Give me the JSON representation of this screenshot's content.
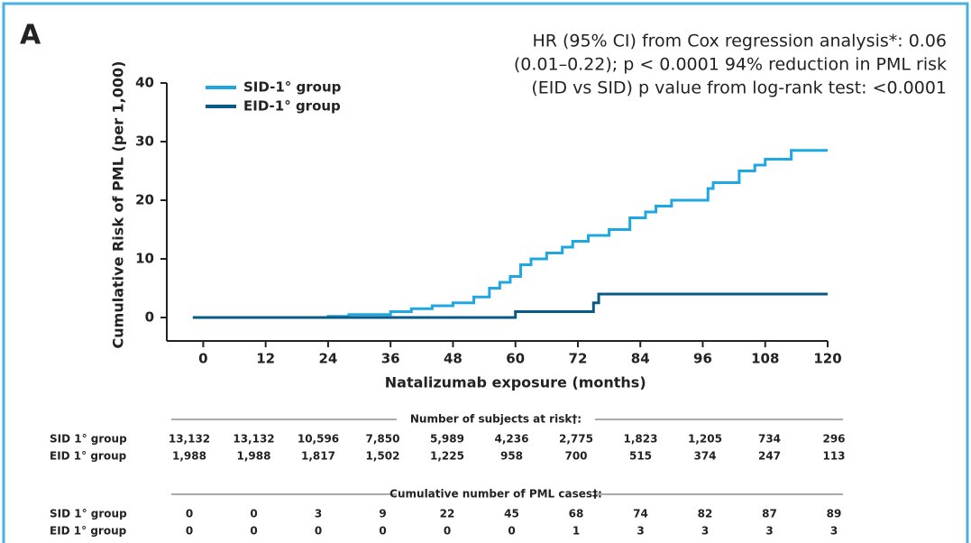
{
  "panel_label": "A",
  "chart_data": {
    "type": "line",
    "step": true,
    "annotation": [
      "HR (95% CI) from Cox regression analysis*: 0.06",
      "(0.01–0.22); p < 0.0001 94% reduction in PML risk",
      "(EID vs SID) p value from log-rank test: <0.0001"
    ],
    "xlabel": "Natalizumab exposure (months)",
    "ylabel": "Cumulative Risk of PML (per 1,000)",
    "xlim": [
      -7,
      120
    ],
    "ylim": [
      -4,
      40
    ],
    "xticks": [
      0,
      12,
      24,
      36,
      48,
      60,
      72,
      84,
      96,
      108,
      120
    ],
    "yticks": [
      0,
      10,
      20,
      30,
      40
    ],
    "legend": "top-left",
    "series": [
      {
        "name": "SID-1° group",
        "color": "#1ea7e1",
        "x": [
          -2,
          24,
          28,
          36,
          40,
          44,
          48,
          52,
          55,
          57,
          59,
          61,
          63,
          66,
          69,
          71,
          74,
          78,
          82,
          85,
          87,
          90,
          97,
          98,
          103,
          106,
          108,
          113,
          120
        ],
        "values": [
          0,
          0.2,
          0.5,
          1,
          1.5,
          2,
          2.5,
          3.5,
          5,
          6,
          7,
          9,
          10,
          11,
          12,
          13,
          14,
          15,
          17,
          18,
          19,
          20,
          22,
          23,
          25,
          26,
          27,
          28.5,
          28.5
        ]
      },
      {
        "name": "EID-1° group",
        "color": "#0b5a85",
        "x": [
          -2,
          60,
          75,
          76,
          120
        ],
        "values": [
          0,
          1,
          2.5,
          4,
          4
        ]
      }
    ]
  },
  "risk_table": {
    "sections": [
      {
        "title": "Number of subjects at risk†:",
        "rows": [
          {
            "label": "SID 1° group",
            "cells": [
              "13,132",
              "13,132",
              "10,596",
              "7,850",
              "5,989",
              "4,236",
              "2,775",
              "1,823",
              "1,205",
              "734",
              "296"
            ]
          },
          {
            "label": "EID 1° group",
            "cells": [
              "1,988",
              "1,988",
              "1,817",
              "1,502",
              "1,225",
              "958",
              "700",
              "515",
              "374",
              "247",
              "113"
            ]
          }
        ]
      },
      {
        "title": "Cumulative number of PML cases‡:",
        "rows": [
          {
            "label": "SID 1° group",
            "cells": [
              "0",
              "0",
              "3",
              "9",
              "22",
              "45",
              "68",
              "74",
              "82",
              "87",
              "89"
            ]
          },
          {
            "label": "EID 1° group",
            "cells": [
              "0",
              "0",
              "0",
              "0",
              "0",
              "0",
              "1",
              "3",
              "3",
              "3",
              "3"
            ]
          }
        ]
      }
    ]
  }
}
